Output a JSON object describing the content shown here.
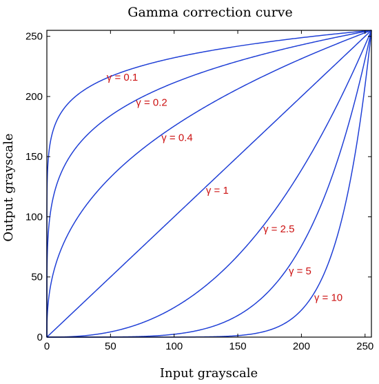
{
  "chart_data": {
    "type": "line",
    "title": "Gamma correction curve",
    "xlabel": "Input grayscale",
    "ylabel": "Output grayscale",
    "xlim": [
      0,
      255
    ],
    "ylim": [
      0,
      255
    ],
    "xticks": [
      0,
      50,
      100,
      150,
      200,
      250
    ],
    "yticks": [
      0,
      50,
      100,
      150,
      200,
      250
    ],
    "grid": false,
    "line_color": "#1f3fd6",
    "annotation_color": "#cc1111",
    "series": [
      {
        "gamma": 0.1,
        "label": "γ = 0.1",
        "label_at": [
          47,
          216
        ]
      },
      {
        "gamma": 0.2,
        "label": "γ = 0.2",
        "label_at": [
          70,
          195
        ]
      },
      {
        "gamma": 0.4,
        "label": "γ = 0.4",
        "label_at": [
          90,
          166
        ]
      },
      {
        "gamma": 1,
        "label": "γ = 1",
        "label_at": [
          125,
          122
        ]
      },
      {
        "gamma": 2.5,
        "label": "γ = 2.5",
        "label_at": [
          170,
          90
        ]
      },
      {
        "gamma": 5,
        "label": "γ = 5",
        "label_at": [
          190,
          55
        ]
      },
      {
        "gamma": 10,
        "label": "γ = 10",
        "label_at": [
          210,
          33
        ]
      }
    ]
  }
}
